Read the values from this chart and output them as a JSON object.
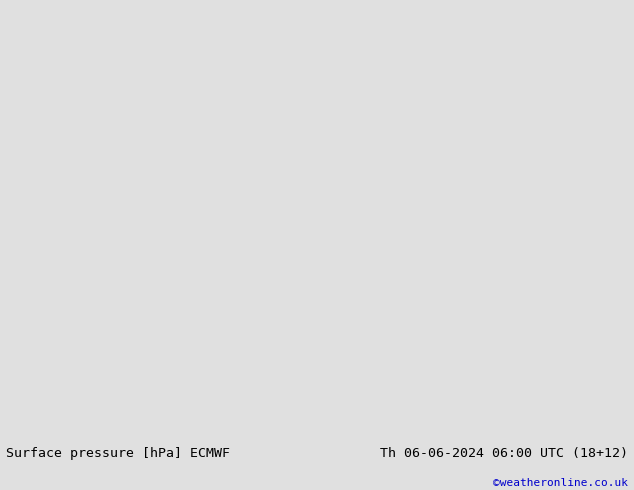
{
  "title_left": "Surface pressure [hPa] ECMWF",
  "title_right": "Th 06-06-2024 06:00 UTC (18+12)",
  "credit": "©weatheronline.co.uk",
  "bottom_bar_color": "#e0e0e0",
  "title_fontsize": 9.5,
  "credit_color": "#0000cc",
  "credit_fontsize": 8,
  "fig_width": 6.34,
  "fig_height": 4.9,
  "dpi": 100,
  "ocean_color": "#d8d8d8",
  "land_color": "#c8e6a0",
  "mountain_color": "#b0b0b0",
  "map_extent": [
    -30,
    50,
    25,
    75
  ]
}
